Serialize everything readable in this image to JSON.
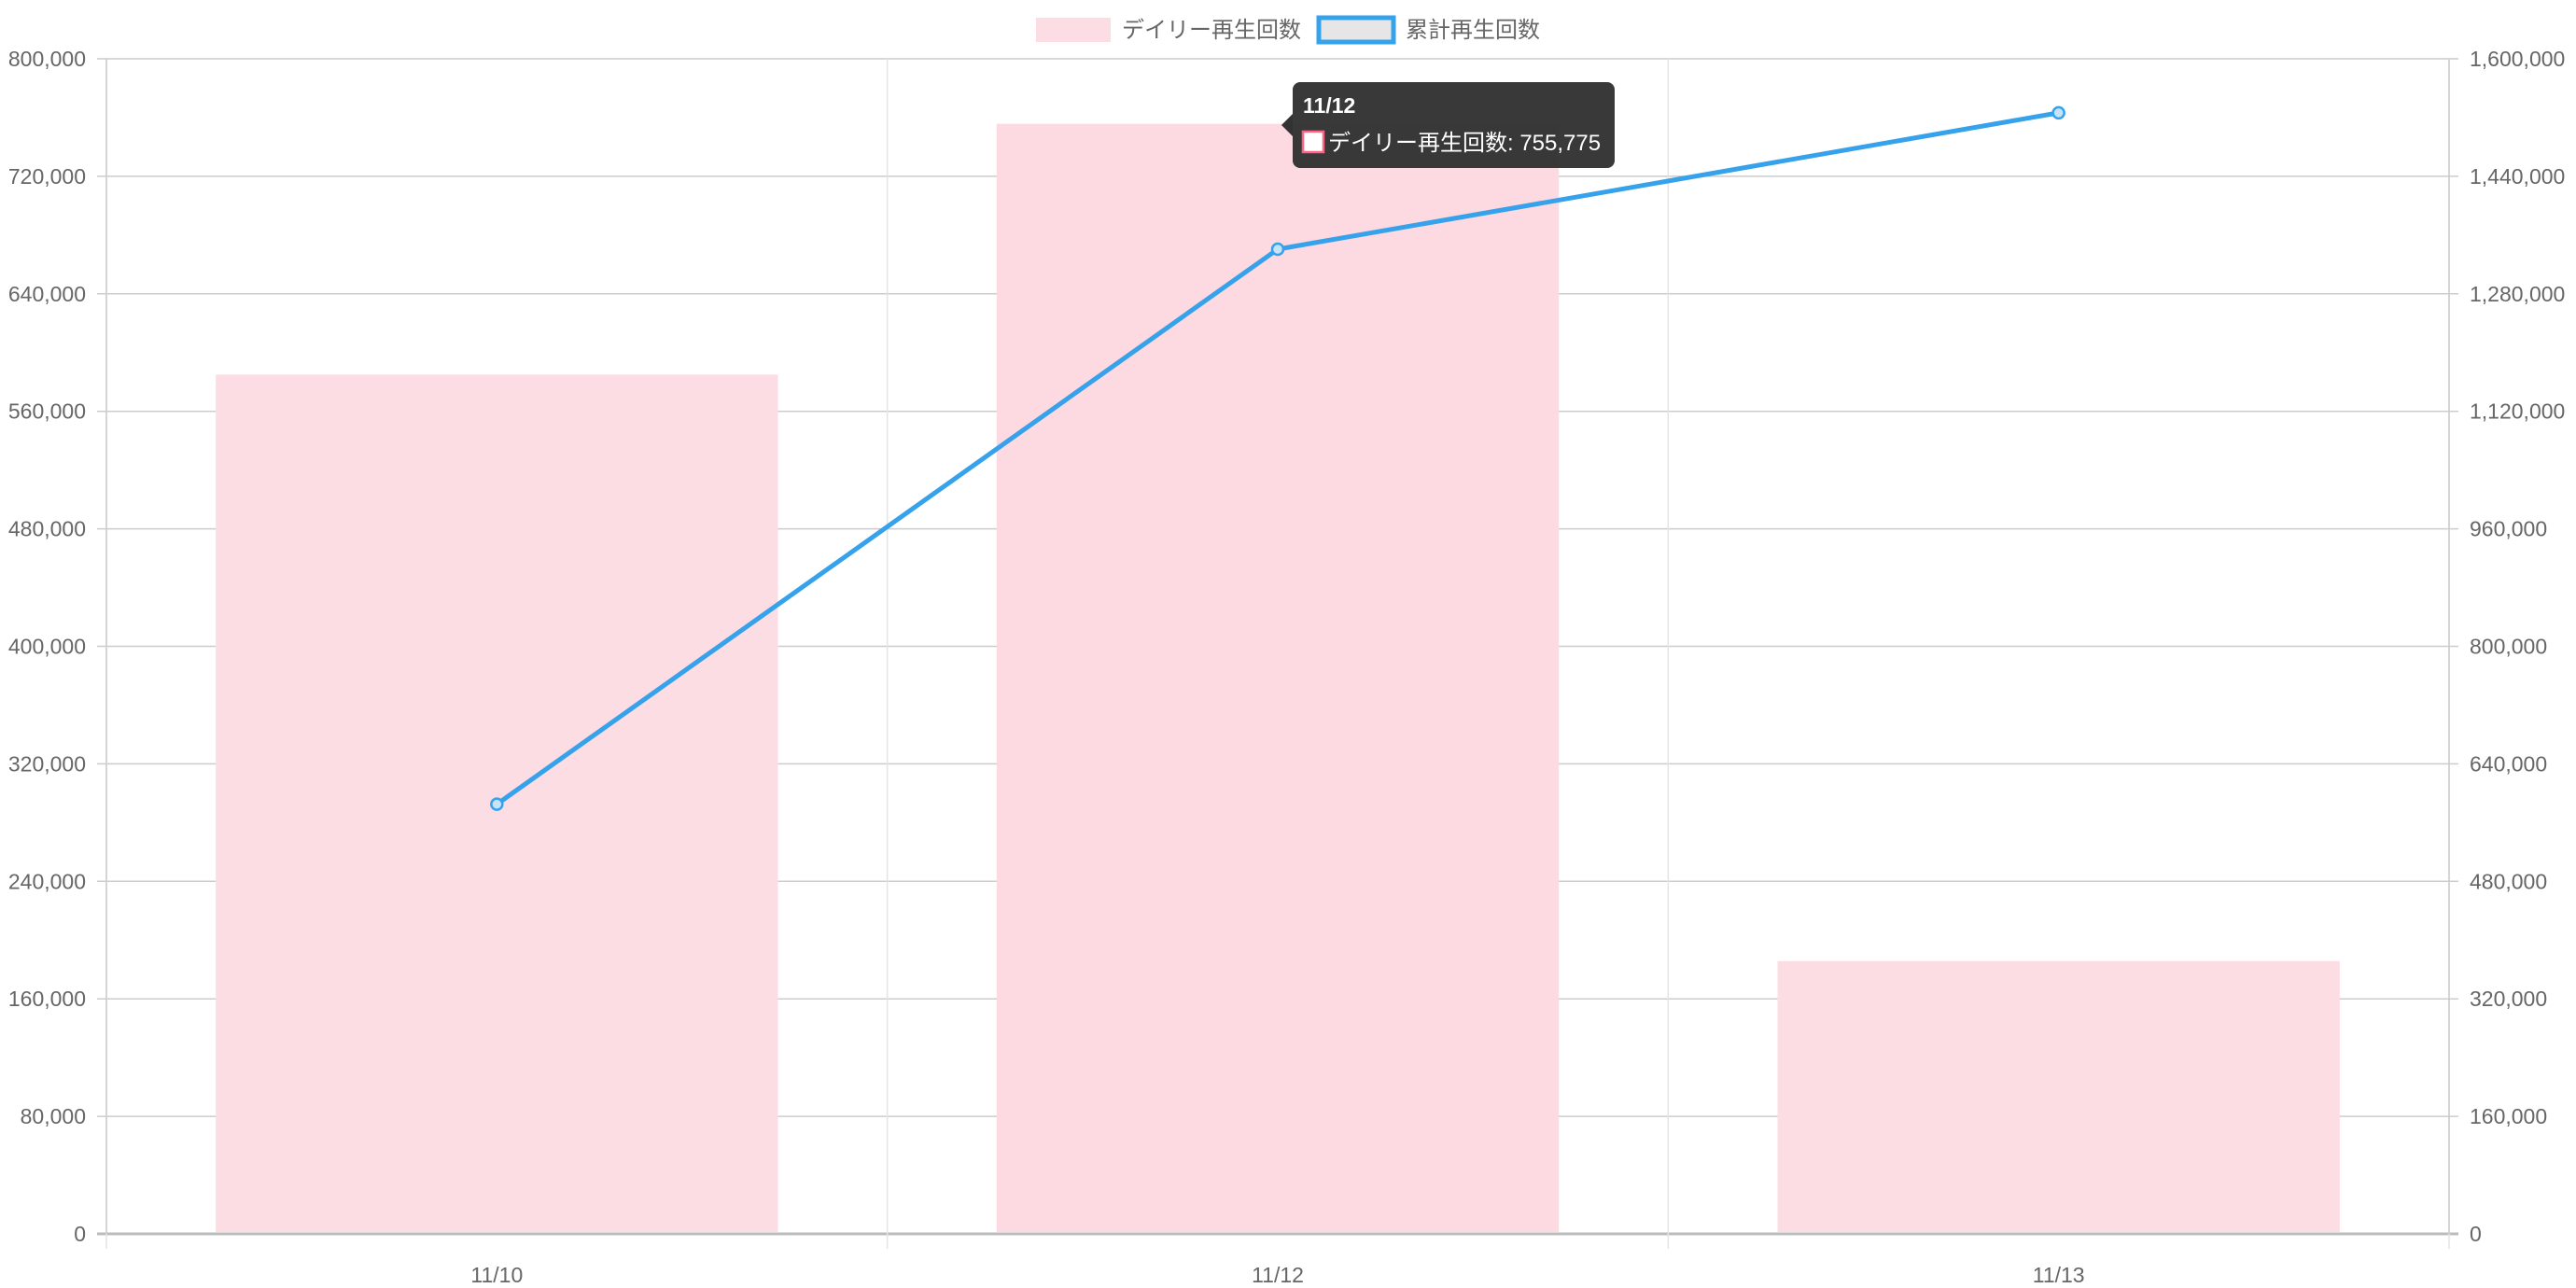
{
  "chart_data": {
    "type": "bar",
    "categories": [
      "11/10",
      "11/12",
      "11/13"
    ],
    "series": [
      {
        "name": "デイリー再生回数",
        "type": "bar",
        "axis": "left",
        "values": [
          585000,
          755775,
          185700
        ],
        "color": "#fddde4"
      },
      {
        "name": "累計再生回数",
        "type": "line",
        "axis": "right",
        "values": [
          585000,
          1340775,
          1526475
        ],
        "color": "#36a2eb"
      }
    ],
    "left_axis": {
      "ylim": [
        0,
        800000
      ],
      "ticks": [
        "0",
        "80,000",
        "160,000",
        "240,000",
        "320,000",
        "400,000",
        "480,000",
        "560,000",
        "640,000",
        "720,000",
        "800,000"
      ]
    },
    "right_axis": {
      "ylim": [
        0,
        1600000
      ],
      "ticks": [
        "0",
        "160,000",
        "320,000",
        "480,000",
        "640,000",
        "800,000",
        "960,000",
        "1,120,000",
        "1,280,000",
        "1,440,000",
        "1,600,000"
      ]
    },
    "legend": {
      "placement": "top-center",
      "items": [
        "デイリー再生回数",
        "累計再生回数"
      ]
    },
    "grid": true,
    "tooltip": {
      "title": "11/12",
      "label": "デイリー再生回数: 755,775",
      "category_index": 1
    }
  }
}
